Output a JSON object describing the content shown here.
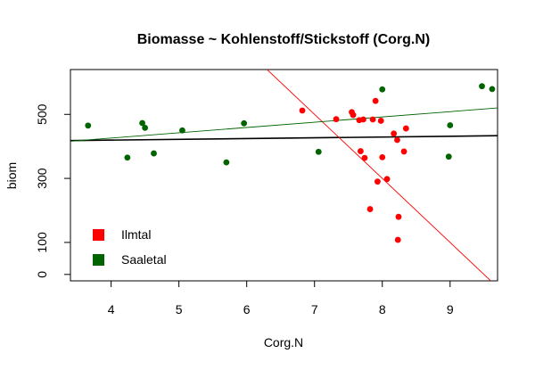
{
  "chart_data": {
    "type": "scatter",
    "title": "Biomasse ~ Kohlenstoff/Stickstoff (Corg.N)",
    "xlabel": "Corg.N",
    "ylabel": "biom",
    "xlim": [
      3.4,
      9.7
    ],
    "ylim": [
      -20,
      640
    ],
    "x_ticks": [
      4,
      5,
      6,
      7,
      8,
      9
    ],
    "y_ticks": [
      0,
      100,
      300,
      500
    ],
    "grid": false,
    "legend": {
      "position": "bottom-left"
    },
    "series": [
      {
        "name": "Ilmtal",
        "color": "#ff0000",
        "points": [
          {
            "x": 6.82,
            "y": 512
          },
          {
            "x": 7.32,
            "y": 485
          },
          {
            "x": 7.55,
            "y": 507
          },
          {
            "x": 7.57,
            "y": 498
          },
          {
            "x": 7.66,
            "y": 482
          },
          {
            "x": 7.72,
            "y": 484
          },
          {
            "x": 7.68,
            "y": 385
          },
          {
            "x": 7.74,
            "y": 364
          },
          {
            "x": 7.82,
            "y": 204
          },
          {
            "x": 7.86,
            "y": 484
          },
          {
            "x": 7.9,
            "y": 542
          },
          {
            "x": 7.93,
            "y": 290
          },
          {
            "x": 7.98,
            "y": 480
          },
          {
            "x": 8.0,
            "y": 366
          },
          {
            "x": 8.07,
            "y": 298
          },
          {
            "x": 8.17,
            "y": 440
          },
          {
            "x": 8.22,
            "y": 420
          },
          {
            "x": 8.23,
            "y": 108
          },
          {
            "x": 8.24,
            "y": 180
          },
          {
            "x": 8.32,
            "y": 384
          },
          {
            "x": 8.35,
            "y": 456
          }
        ],
        "fit": {
          "intercept": 1900,
          "slope": -200
        }
      },
      {
        "name": "Saaletal",
        "color": "#006400",
        "points": [
          {
            "x": 3.66,
            "y": 465
          },
          {
            "x": 4.24,
            "y": 365
          },
          {
            "x": 4.46,
            "y": 473
          },
          {
            "x": 4.5,
            "y": 458
          },
          {
            "x": 4.63,
            "y": 378
          },
          {
            "x": 5.05,
            "y": 450
          },
          {
            "x": 5.7,
            "y": 350
          },
          {
            "x": 5.96,
            "y": 472
          },
          {
            "x": 7.06,
            "y": 383
          },
          {
            "x": 8.0,
            "y": 578
          },
          {
            "x": 8.98,
            "y": 368
          },
          {
            "x": 9.0,
            "y": 466
          },
          {
            "x": 9.47,
            "y": 588
          },
          {
            "x": 9.62,
            "y": 579
          }
        ],
        "fit": {
          "intercept": 360,
          "slope": 16.5
        }
      }
    ],
    "reference_line": {
      "intercept": 410,
      "slope": 2.4,
      "color": "#000000"
    }
  }
}
